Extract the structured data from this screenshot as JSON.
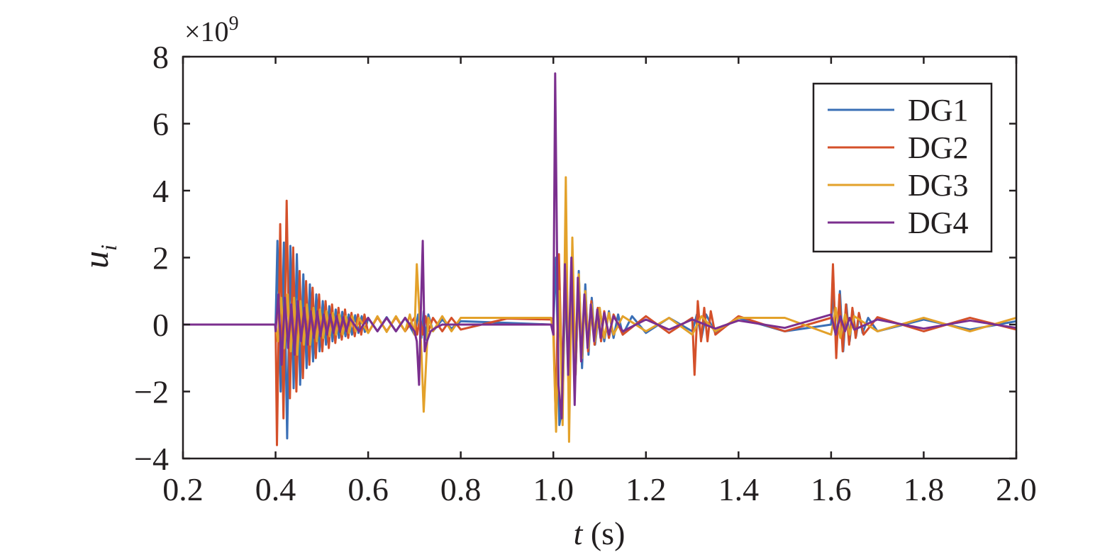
{
  "chart_data": {
    "type": "line",
    "xlabel_var": "t",
    "xlabel_unit": " (s)",
    "ylabel_var": "u",
    "ylabel_sub": "i",
    "y_scale_prefix": "×10",
    "y_scale_exp": "9",
    "xlim": [
      0.2,
      2.0
    ],
    "ylim": [
      -4,
      8
    ],
    "x_ticks": [
      0.2,
      0.4,
      0.6,
      0.8,
      1.0,
      1.2,
      1.4,
      1.6,
      1.8,
      2.0
    ],
    "x_tick_labels": [
      "0.2",
      "0.4",
      "0.6",
      "0.8",
      "1.0",
      "1.2",
      "1.4",
      "1.6",
      "1.8",
      "2.0"
    ],
    "y_ticks": [
      -4,
      -2,
      0,
      2,
      4,
      6,
      8
    ],
    "y_tick_labels": [
      "−4",
      "−2",
      "0",
      "2",
      "4",
      "6",
      "8"
    ],
    "grid": false,
    "legend_position": "top-right",
    "series": [
      {
        "name": "DG1",
        "color": "#3a6fb6",
        "x": [
          0.2,
          0.4,
          0.404,
          0.411,
          0.418,
          0.425,
          0.432,
          0.439,
          0.446,
          0.453,
          0.46,
          0.467,
          0.474,
          0.481,
          0.488,
          0.495,
          0.502,
          0.509,
          0.516,
          0.523,
          0.53,
          0.537,
          0.544,
          0.551,
          0.558,
          0.565,
          0.572,
          0.579,
          0.586,
          0.593,
          0.6,
          0.62,
          0.64,
          0.66,
          0.68,
          0.7,
          0.708,
          0.715,
          0.72,
          0.725,
          0.73,
          0.74,
          0.76,
          0.78,
          0.8,
          0.9,
          0.995,
          1.0,
          1.006,
          1.013,
          1.02,
          1.027,
          1.034,
          1.041,
          1.048,
          1.055,
          1.062,
          1.069,
          1.076,
          1.083,
          1.09,
          1.1,
          1.11,
          1.12,
          1.13,
          1.14,
          1.15,
          1.17,
          1.2,
          1.25,
          1.3,
          1.31,
          1.32,
          1.33,
          1.35,
          1.4,
          1.5,
          1.6,
          1.605,
          1.612,
          1.619,
          1.626,
          1.633,
          1.64,
          1.647,
          1.654,
          1.661,
          1.668,
          1.68,
          1.7,
          1.8,
          1.9,
          2.0
        ],
        "y": [
          0,
          0,
          2.5,
          -2.0,
          2.45,
          -3.4,
          2.35,
          -1.9,
          2.1,
          -1.8,
          1.5,
          -1.3,
          1.2,
          -1.1,
          0.9,
          -0.8,
          0.7,
          -0.6,
          0.55,
          -0.5,
          0.45,
          -0.4,
          0.38,
          -0.35,
          0.3,
          -0.3,
          0.28,
          -0.25,
          0.25,
          -0.22,
          0.2,
          -0.2,
          0.22,
          -0.2,
          0.2,
          -0.3,
          0.3,
          -0.4,
          0.4,
          -0.45,
          0.3,
          -0.2,
          0.15,
          -0.12,
          0.1,
          0.05,
          0.0,
          0.0,
          2.0,
          -3.0,
          -2.4,
          1.9,
          -2.2,
          2.1,
          -1.5,
          1.6,
          -1.3,
          1.2,
          -0.9,
          0.8,
          -0.6,
          0.5,
          -0.5,
          0.4,
          -0.4,
          0.3,
          -0.3,
          0.25,
          -0.25,
          0.2,
          -0.2,
          0.3,
          -0.4,
          0.3,
          -0.25,
          0.2,
          -0.2,
          0.0,
          1.0,
          -0.6,
          1.0,
          -0.8,
          0.6,
          -0.5,
          0.4,
          -0.35,
          0.3,
          -0.25,
          0.2,
          -0.2,
          0.15,
          -0.15,
          0.1
        ]
      },
      {
        "name": "DG2",
        "color": "#d4502a",
        "x": [
          0.2,
          0.4,
          0.403,
          0.41,
          0.417,
          0.424,
          0.431,
          0.438,
          0.445,
          0.452,
          0.459,
          0.466,
          0.473,
          0.48,
          0.487,
          0.494,
          0.501,
          0.508,
          0.515,
          0.522,
          0.529,
          0.536,
          0.543,
          0.55,
          0.557,
          0.564,
          0.571,
          0.578,
          0.585,
          0.592,
          0.6,
          0.62,
          0.64,
          0.66,
          0.68,
          0.7,
          0.706,
          0.712,
          0.718,
          0.724,
          0.73,
          0.74,
          0.76,
          0.78,
          0.8,
          0.9,
          0.995,
          1.0,
          1.005,
          1.012,
          1.019,
          1.026,
          1.033,
          1.04,
          1.047,
          1.054,
          1.061,
          1.068,
          1.075,
          1.082,
          1.089,
          1.096,
          1.103,
          1.11,
          1.12,
          1.13,
          1.15,
          1.2,
          1.25,
          1.3,
          1.305,
          1.312,
          1.319,
          1.326,
          1.333,
          1.34,
          1.35,
          1.4,
          1.5,
          1.6,
          1.604,
          1.611,
          1.618,
          1.625,
          1.632,
          1.639,
          1.646,
          1.653,
          1.66,
          1.67,
          1.7,
          1.8,
          1.9,
          2.0
        ],
        "y": [
          0,
          0,
          -3.6,
          3.0,
          -2.8,
          3.7,
          -2.2,
          2.3,
          -2.0,
          1.6,
          -1.6,
          1.3,
          -1.2,
          1.1,
          -1.0,
          0.9,
          -0.8,
          0.7,
          -0.7,
          0.6,
          -0.55,
          0.5,
          -0.45,
          0.45,
          -0.4,
          0.35,
          -0.35,
          0.3,
          -0.3,
          0.3,
          -0.25,
          0.22,
          -0.2,
          0.22,
          -0.2,
          0.2,
          -0.3,
          0.25,
          -0.3,
          0.25,
          -0.2,
          0.2,
          -0.2,
          0.2,
          -0.15,
          0.18,
          0.15,
          0.2,
          -2.8,
          2.1,
          -1.8,
          1.8,
          -2.0,
          1.7,
          -1.5,
          1.3,
          -1.0,
          0.9,
          -0.8,
          0.7,
          -0.6,
          0.5,
          -0.5,
          0.4,
          -0.4,
          0.3,
          -0.3,
          0.25,
          -0.25,
          0.2,
          -1.5,
          0.7,
          -0.5,
          0.5,
          -0.5,
          0.4,
          -0.3,
          0.25,
          -0.2,
          0.2,
          1.8,
          -1.0,
          0.9,
          -0.8,
          0.6,
          -0.6,
          0.5,
          -0.4,
          0.35,
          -0.3,
          0.22,
          -0.2,
          0.2,
          -0.15
        ]
      },
      {
        "name": "DG3",
        "color": "#e3a12a",
        "x": [
          0.2,
          0.4,
          0.405,
          0.412,
          0.419,
          0.426,
          0.433,
          0.44,
          0.447,
          0.454,
          0.461,
          0.468,
          0.475,
          0.482,
          0.489,
          0.496,
          0.503,
          0.51,
          0.517,
          0.524,
          0.531,
          0.538,
          0.545,
          0.552,
          0.559,
          0.566,
          0.573,
          0.58,
          0.6,
          0.62,
          0.64,
          0.66,
          0.68,
          0.69,
          0.7,
          0.705,
          0.71,
          0.715,
          0.72,
          0.73,
          0.74,
          0.76,
          0.78,
          0.8,
          0.9,
          0.995,
          1.0,
          1.006,
          1.013,
          1.02,
          1.027,
          1.034,
          1.041,
          1.048,
          1.055,
          1.062,
          1.069,
          1.076,
          1.083,
          1.09,
          1.1,
          1.11,
          1.12,
          1.13,
          1.15,
          1.2,
          1.25,
          1.3,
          1.32,
          1.35,
          1.4,
          1.5,
          1.6,
          1.61,
          1.62,
          1.63,
          1.64,
          1.65,
          1.7,
          1.8,
          1.9,
          2.0
        ],
        "y": [
          0,
          0,
          -0.5,
          0.8,
          -0.7,
          0.9,
          -0.8,
          0.8,
          -0.9,
          0.7,
          -0.6,
          0.6,
          -0.6,
          0.5,
          -0.5,
          0.45,
          -0.4,
          0.4,
          -0.35,
          0.35,
          -0.3,
          0.3,
          -0.3,
          0.25,
          -0.25,
          0.25,
          -0.2,
          0.2,
          -0.25,
          0.25,
          -0.22,
          0.25,
          -0.2,
          0.3,
          -0.3,
          1.8,
          0.5,
          -0.8,
          -2.6,
          0.2,
          -0.2,
          0.25,
          -0.2,
          0.2,
          0.2,
          0.2,
          -0.3,
          -3.2,
          1.0,
          -3.0,
          4.4,
          -3.5,
          2.6,
          -1.5,
          1.5,
          -1.0,
          1.0,
          -0.7,
          0.6,
          -0.5,
          0.5,
          -0.4,
          0.35,
          -0.3,
          0.25,
          -0.2,
          0.2,
          -0.3,
          0.25,
          -0.2,
          0.2,
          0.2,
          -0.3,
          0.5,
          -0.4,
          0.3,
          -0.3,
          0.25,
          -0.2,
          0.2,
          -0.2,
          0.2
        ]
      },
      {
        "name": "DG4",
        "color": "#7b2f8e",
        "x": [
          0.2,
          0.399,
          0.4,
          0.406,
          0.413,
          0.42,
          0.427,
          0.434,
          0.441,
          0.448,
          0.455,
          0.462,
          0.469,
          0.476,
          0.483,
          0.49,
          0.497,
          0.504,
          0.511,
          0.518,
          0.525,
          0.532,
          0.539,
          0.546,
          0.553,
          0.56,
          0.58,
          0.6,
          0.62,
          0.64,
          0.66,
          0.68,
          0.7,
          0.705,
          0.71,
          0.714,
          0.718,
          0.722,
          0.727,
          0.735,
          0.745,
          0.76,
          0.78,
          0.8,
          0.9,
          0.995,
          1.0,
          1.004,
          1.011,
          1.018,
          1.025,
          1.032,
          1.039,
          1.046,
          1.053,
          1.06,
          1.067,
          1.074,
          1.081,
          1.088,
          1.095,
          1.102,
          1.11,
          1.12,
          1.13,
          1.15,
          1.2,
          1.25,
          1.3,
          1.35,
          1.4,
          1.5,
          1.6,
          1.61,
          1.62,
          1.63,
          1.64,
          1.65,
          1.7,
          1.8,
          1.9,
          2.0
        ],
        "y": [
          0,
          0,
          -0.2,
          0.9,
          -1.2,
          0.8,
          -0.7,
          0.6,
          -0.9,
          0.7,
          -0.5,
          0.5,
          -0.6,
          0.4,
          -0.4,
          0.4,
          -0.35,
          0.3,
          -0.3,
          0.3,
          -0.25,
          0.25,
          -0.22,
          0.22,
          -0.2,
          0.2,
          -0.2,
          0.2,
          -0.2,
          0.2,
          -0.2,
          0.2,
          -0.2,
          -0.5,
          -1.8,
          0.5,
          2.5,
          -0.8,
          -0.5,
          -0.2,
          -0.1,
          0.0,
          0.0,
          0.0,
          0.0,
          0.0,
          -0.3,
          7.5,
          -1.8,
          -2.8,
          1.8,
          -1.5,
          2.0,
          -2.4,
          1.4,
          -1.1,
          0.9,
          -0.7,
          0.6,
          -0.5,
          0.45,
          -0.4,
          0.35,
          -0.3,
          0.25,
          -0.2,
          0.15,
          -0.15,
          0.15,
          -0.12,
          0.12,
          -0.1,
          0.3,
          -0.3,
          0.25,
          -0.2,
          0.2,
          -0.15,
          0.15,
          -0.12,
          0.12,
          -0.1
        ]
      }
    ]
  }
}
